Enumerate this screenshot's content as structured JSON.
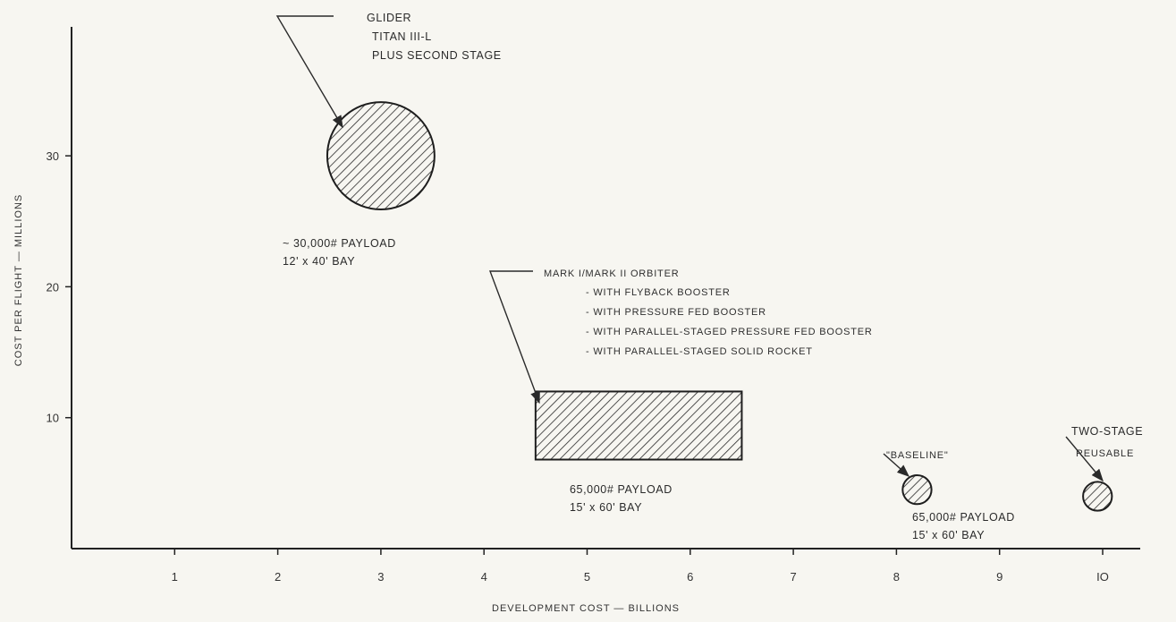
{
  "chart_data": {
    "type": "scatter",
    "title": "",
    "xlabel": "DEVELOPMENT COST — BILLIONS",
    "ylabel": "COST PER FLIGHT — MILLIONS",
    "xlim": [
      0,
      10.6
    ],
    "ylim": [
      0,
      40
    ],
    "x_ticks": [
      1,
      2,
      3,
      4,
      5,
      6,
      7,
      8,
      9,
      10
    ],
    "x_tick_labels": [
      "1",
      "2",
      "3",
      "4",
      "5",
      "6",
      "7",
      "8",
      "9",
      "IO"
    ],
    "y_ticks": [
      10,
      20,
      30
    ],
    "y_tick_labels": [
      "10",
      "20",
      "30"
    ],
    "grid": false,
    "legend": "none",
    "colors": {
      "ink": "#2a2a2a",
      "paper": "#f7f6f1"
    },
    "elements": [
      {
        "shape": "circle",
        "x": 3.0,
        "y": 30,
        "radius_x": 0.52,
        "radius_y": 4.1,
        "callout": [
          "GLIDER",
          "TITAN III-L",
          "PLUS SECOND STAGE"
        ],
        "label": [
          "~ 30,000# PAYLOAD",
          "12' x 40' BAY"
        ]
      },
      {
        "shape": "rectangle",
        "x_range": [
          4.5,
          6.5
        ],
        "y_range": [
          6.8,
          12
        ],
        "callout": [
          "MARK I/MARK II ORBITER",
          "- WITH FLYBACK BOOSTER",
          "- WITH PRESSURE FED BOOSTER",
          "- WITH PARALLEL-STAGED PRESSURE FED BOOSTER",
          "- WITH PARALLEL-STAGED SOLID ROCKET"
        ],
        "label": [
          "65,000# PAYLOAD",
          "15' x 60' BAY"
        ]
      },
      {
        "shape": "circle",
        "x": 8.2,
        "y": 4.5,
        "radius_x": 0.14,
        "radius_y": 1.05,
        "callout": [
          "\"BASELINE\""
        ],
        "label": [
          "65,000# PAYLOAD",
          "15' x 60' BAY"
        ]
      },
      {
        "shape": "circle",
        "x": 9.95,
        "y": 4.0,
        "radius_x": 0.14,
        "radius_y": 1.05,
        "callout": [
          "TWO-STAGE",
          "REUSABLE"
        ],
        "label": []
      }
    ]
  }
}
